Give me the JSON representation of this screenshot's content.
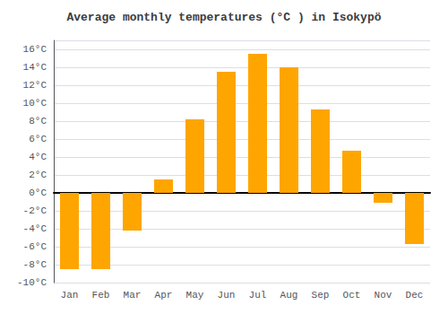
{
  "chart_data": {
    "type": "bar",
    "title": "Average monthly temperatures (°C ) in Isokyрö",
    "categories": [
      "Jan",
      "Feb",
      "Mar",
      "Apr",
      "May",
      "Jun",
      "Jul",
      "Aug",
      "Sep",
      "Oct",
      "Nov",
      "Dec"
    ],
    "values": [
      -8.5,
      -8.5,
      -4.2,
      1.5,
      8.2,
      13.5,
      15.5,
      14.0,
      9.3,
      4.7,
      -1.1,
      -5.7
    ],
    "color": "#FFA500",
    "ylim": [
      -10,
      17
    ],
    "yticks": [
      {
        "value": -10,
        "label": "-10°C"
      },
      {
        "value": -8,
        "label": "-8°C"
      },
      {
        "value": -6,
        "label": "-6°C"
      },
      {
        "value": -4,
        "label": "-4°C"
      },
      {
        "value": -2,
        "label": "-2°C"
      },
      {
        "value": 0,
        "label": "0°C"
      },
      {
        "value": 2,
        "label": "2°C"
      },
      {
        "value": 4,
        "label": "4°C"
      },
      {
        "value": 6,
        "label": "6°C"
      },
      {
        "value": 8,
        "label": "8°C"
      },
      {
        "value": 10,
        "label": "10°C"
      },
      {
        "value": 12,
        "label": "12°C"
      },
      {
        "value": 14,
        "label": "14°C"
      },
      {
        "value": 16,
        "label": "16°C"
      }
    ],
    "grid": true
  }
}
